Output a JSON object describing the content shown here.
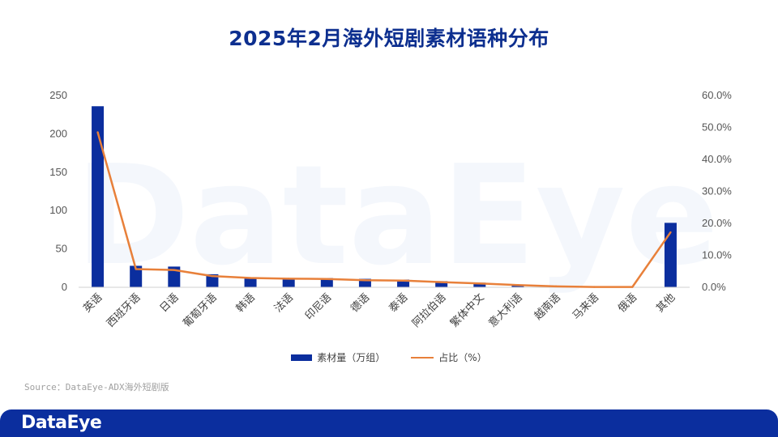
{
  "title": "2025年2月海外短剧素材语种分布",
  "watermark": "DataEye",
  "source": "Source：DataEye-ADX海外短剧版",
  "footer_logo": "DataEye",
  "colors": {
    "bar": "#0b2e9e",
    "line": "#e8803a",
    "title": "#0d2f8f",
    "footer": "#0b2e9e"
  },
  "chart_data": {
    "type": "bar",
    "categories": [
      "英语",
      "西班牙语",
      "日语",
      "葡萄牙语",
      "韩语",
      "法语",
      "印尼语",
      "德语",
      "泰语",
      "阿拉伯语",
      "繁体中文",
      "意大利语",
      "越南语",
      "马来语",
      "俄语",
      "其他"
    ],
    "series": [
      {
        "name": "素材量（万组）",
        "type": "bar",
        "axis": "left",
        "values": [
          236,
          28,
          27,
          17,
          13,
          12,
          12,
          11,
          10,
          8,
          6,
          3,
          1,
          0.5,
          0.5,
          84
        ]
      },
      {
        "name": "占比（%）",
        "type": "line",
        "axis": "right",
        "values": [
          48.5,
          5.7,
          5.4,
          3.5,
          2.9,
          2.7,
          2.6,
          2.2,
          2.1,
          1.6,
          1.2,
          0.7,
          0.3,
          0.1,
          0.1,
          17.2
        ]
      }
    ],
    "y_left": {
      "min": 0,
      "max": 250,
      "ticks": [
        "0",
        "50",
        "100",
        "150",
        "200",
        "250"
      ]
    },
    "y_right": {
      "min": 0,
      "max": 60,
      "ticks": [
        "0.0%",
        "10.0%",
        "20.0%",
        "30.0%",
        "40.0%",
        "50.0%",
        "60.0%"
      ]
    },
    "legend_position": "bottom",
    "grid": false
  }
}
